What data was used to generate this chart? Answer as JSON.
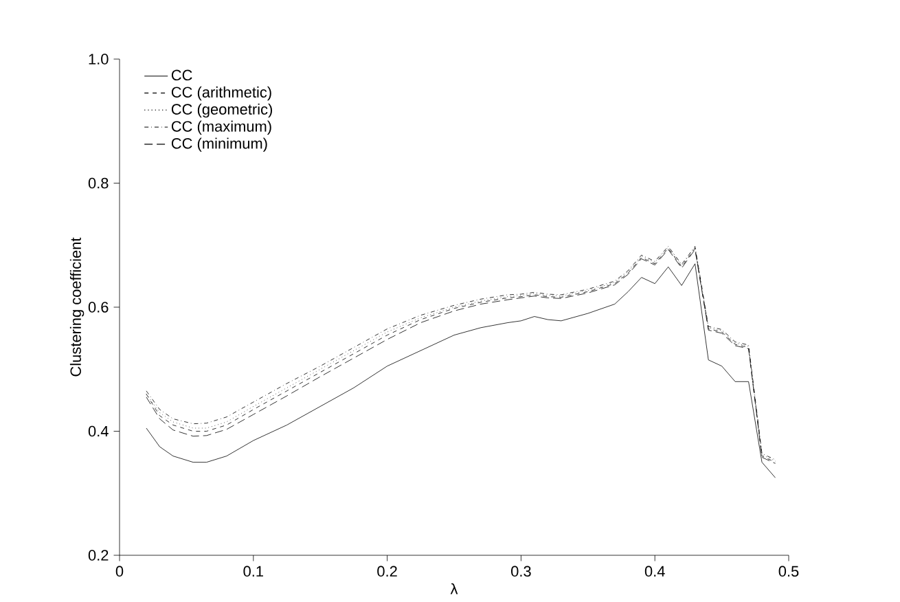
{
  "chart_data": {
    "type": "line",
    "xlabel": "λ",
    "ylabel": "Clustering coefficient",
    "x": [
      0.02,
      0.03,
      0.04,
      0.055,
      0.065,
      0.08,
      0.1,
      0.125,
      0.15,
      0.175,
      0.2,
      0.225,
      0.25,
      0.27,
      0.29,
      0.3,
      0.31,
      0.32,
      0.33,
      0.35,
      0.37,
      0.38,
      0.39,
      0.4,
      0.41,
      0.42,
      0.43,
      0.44,
      0.45,
      0.46,
      0.47,
      0.48,
      0.49
    ],
    "xlim": [
      0,
      0.5
    ],
    "xticks": [
      0,
      0.1,
      0.2,
      0.3,
      0.4,
      0.5
    ],
    "ylim": [
      0.2,
      1.0
    ],
    "yticks": [
      0.2,
      0.4,
      0.6,
      0.8,
      {
        "value": 1.0,
        "label": "1.0"
      }
    ],
    "legend": "top left",
    "series": [
      {
        "name": "CC",
        "color": "#000000",
        "line_style": "solid",
        "values": [
          0.405,
          0.375,
          0.36,
          0.35,
          0.35,
          0.36,
          0.385,
          0.41,
          0.44,
          0.47,
          0.505,
          0.53,
          0.555,
          0.567,
          0.575,
          0.578,
          0.585,
          0.58,
          0.578,
          0.59,
          0.605,
          0.625,
          0.648,
          0.638,
          0.665,
          0.635,
          0.67,
          0.515,
          0.505,
          0.48,
          0.48,
          0.35,
          0.325
        ]
      },
      {
        "name": "CC (arithmetic)",
        "color": "#000000",
        "line_style": "dashed",
        "values": [
          0.46,
          0.425,
          0.41,
          0.4,
          0.4,
          0.41,
          0.435,
          0.465,
          0.495,
          0.525,
          0.555,
          0.58,
          0.598,
          0.608,
          0.615,
          0.617,
          0.62,
          0.617,
          0.616,
          0.625,
          0.638,
          0.655,
          0.68,
          0.67,
          0.695,
          0.665,
          0.695,
          0.565,
          0.56,
          0.54,
          0.535,
          0.36,
          0.35
        ]
      },
      {
        "name": "CC (geometric)",
        "color": "#000000",
        "line_style": "dotted",
        "values": [
          0.46,
          0.43,
          0.415,
          0.405,
          0.405,
          0.415,
          0.44,
          0.47,
          0.5,
          0.53,
          0.56,
          0.583,
          0.6,
          0.61,
          0.617,
          0.619,
          0.622,
          0.619,
          0.618,
          0.627,
          0.64,
          0.657,
          0.682,
          0.672,
          0.697,
          0.667,
          0.697,
          0.567,
          0.562,
          0.542,
          0.537,
          0.362,
          0.352
        ]
      },
      {
        "name": "CC (maximum)",
        "color": "#000000",
        "line_style": "dashdot",
        "values": [
          0.465,
          0.435,
          0.42,
          0.412,
          0.413,
          0.423,
          0.447,
          0.477,
          0.505,
          0.535,
          0.565,
          0.587,
          0.603,
          0.613,
          0.62,
          0.621,
          0.624,
          0.621,
          0.62,
          0.629,
          0.642,
          0.659,
          0.684,
          0.674,
          0.698,
          0.669,
          0.698,
          0.569,
          0.564,
          0.544,
          0.539,
          0.364,
          0.354
        ]
      },
      {
        "name": "CC (minimum)",
        "color": "#000000",
        "line_style": "long dashed",
        "values": [
          0.455,
          0.42,
          0.402,
          0.392,
          0.393,
          0.403,
          0.427,
          0.457,
          0.488,
          0.518,
          0.548,
          0.575,
          0.594,
          0.605,
          0.612,
          0.615,
          0.618,
          0.615,
          0.614,
          0.623,
          0.636,
          0.653,
          0.678,
          0.668,
          0.693,
          0.663,
          0.693,
          0.563,
          0.558,
          0.538,
          0.533,
          0.358,
          0.348
        ]
      }
    ]
  }
}
